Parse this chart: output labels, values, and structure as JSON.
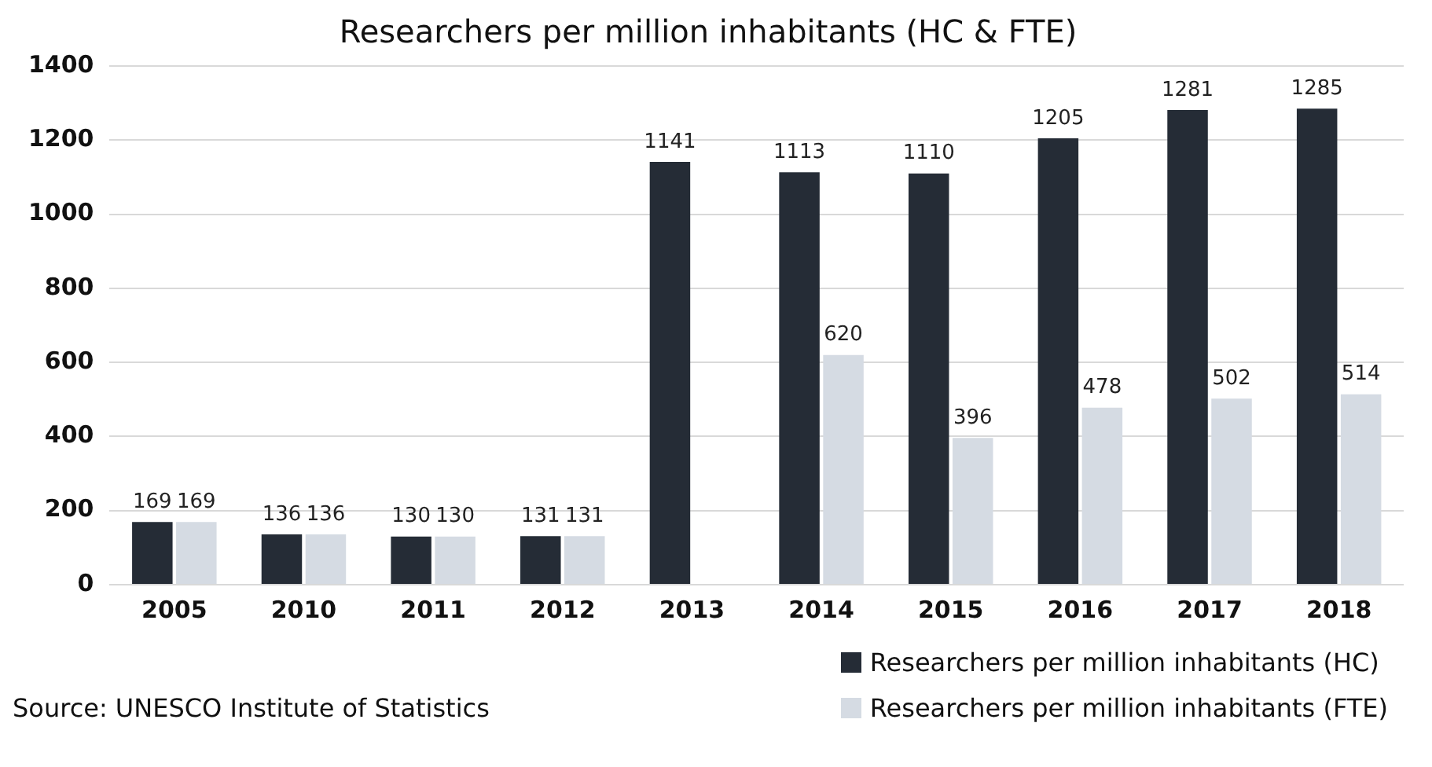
{
  "chart_data": {
    "type": "bar",
    "title": "Researchers per million inhabitants (HC & FTE)",
    "categories": [
      "2005",
      "2010",
      "2011",
      "2012",
      "2013",
      "2014",
      "2015",
      "2016",
      "2017",
      "2018"
    ],
    "series": [
      {
        "name": "Researchers per million inhabitants (HC)",
        "color": "#252c36",
        "values": [
          169,
          136,
          130,
          131,
          1141,
          1113,
          1110,
          1205,
          1281,
          1285
        ]
      },
      {
        "name": "Researchers per million inhabitants (FTE)",
        "color": "#d5dbe3",
        "values": [
          169,
          136,
          130,
          131,
          null,
          620,
          396,
          478,
          502,
          514
        ]
      }
    ],
    "ylim": [
      0,
      1400
    ],
    "yticks": [
      0,
      200,
      400,
      600,
      800,
      1000,
      1200,
      1400
    ],
    "grid": "y",
    "legend": "bottom right",
    "data_labels": true,
    "annotations": [
      "Source:  UNESCO Institute of Statistics"
    ]
  }
}
